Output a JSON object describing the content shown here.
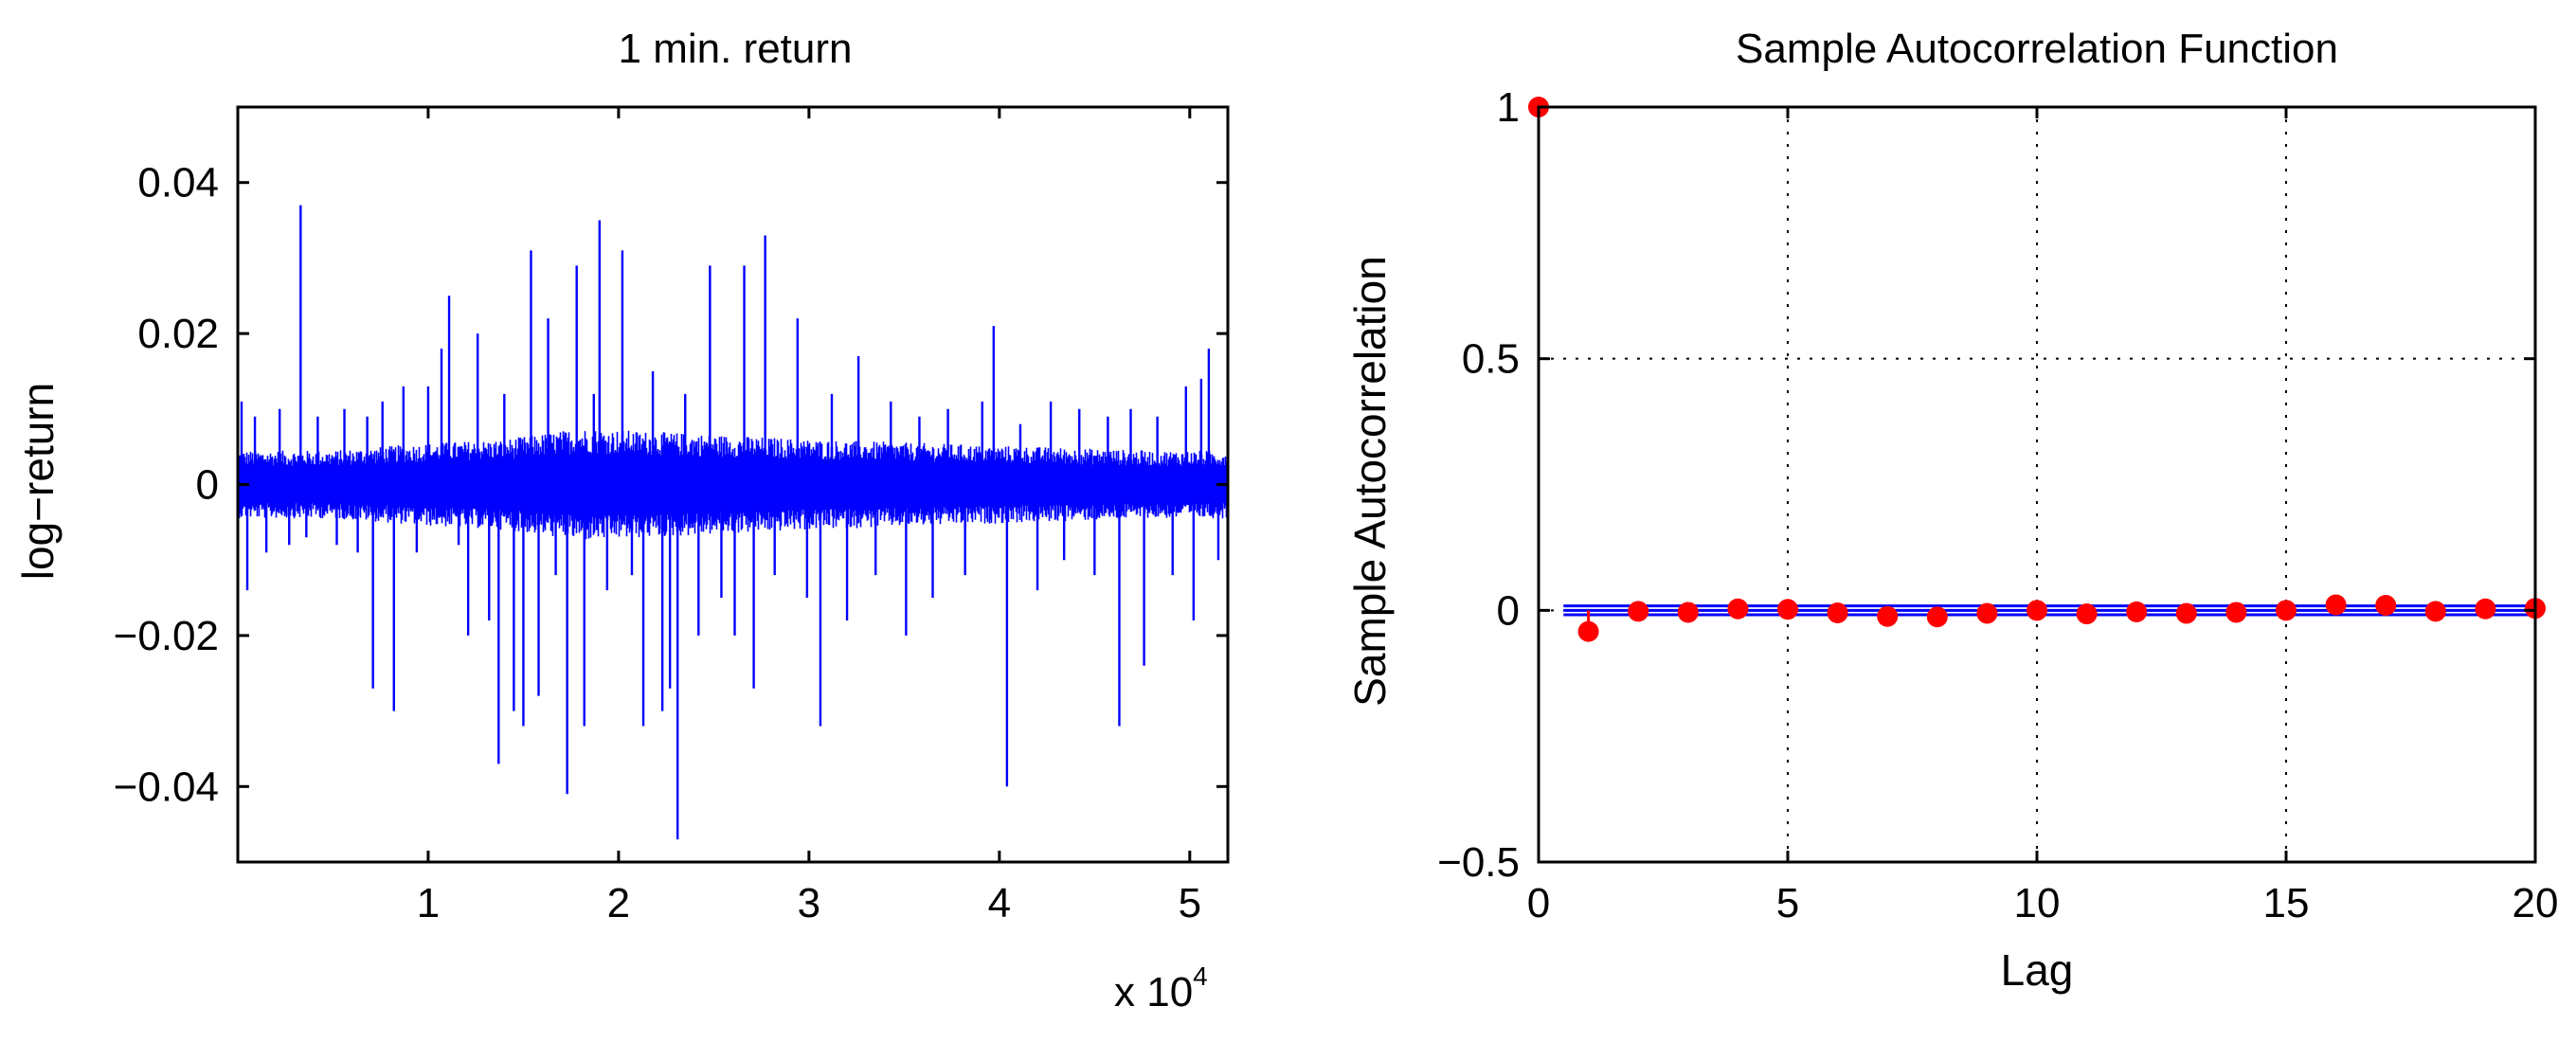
{
  "colors": {
    "series": "#0000ff",
    "acf_marker": "#ff0000",
    "bounds": "#0000ff",
    "axes": "#000000",
    "background": "#ffffff"
  },
  "chart_data": [
    {
      "type": "line",
      "title": "1 min. return",
      "xlabel": "",
      "ylabel": "log−return",
      "xlim": [
        1,
        52000
      ],
      "ylim": [
        -0.05,
        0.05
      ],
      "x_exponent_label": "x 10",
      "x_exponent_power": "4",
      "xticks": [
        {
          "value": 10000,
          "label": "1"
        },
        {
          "value": 20000,
          "label": "2"
        },
        {
          "value": 30000,
          "label": "3"
        },
        {
          "value": 40000,
          "label": "4"
        },
        {
          "value": 50000,
          "label": "5"
        }
      ],
      "yticks": [
        {
          "value": 0.04,
          "label": "0.04"
        },
        {
          "value": 0.02,
          "label": "0.02"
        },
        {
          "value": 0,
          "label": "0"
        },
        {
          "value": -0.02,
          "label": "−0.02"
        },
        {
          "value": -0.04,
          "label": "−0.04"
        }
      ],
      "grid": false,
      "noise_band": [
        {
          "x": 0,
          "half_width": 0.0045
        },
        {
          "x": 5000,
          "half_width": 0.0045
        },
        {
          "x": 10000,
          "half_width": 0.0055
        },
        {
          "x": 14000,
          "half_width": 0.006
        },
        {
          "x": 18000,
          "half_width": 0.0075
        },
        {
          "x": 22000,
          "half_width": 0.007
        },
        {
          "x": 26000,
          "half_width": 0.0065
        },
        {
          "x": 30000,
          "half_width": 0.006
        },
        {
          "x": 36000,
          "half_width": 0.0055
        },
        {
          "x": 42000,
          "half_width": 0.005
        },
        {
          "x": 48000,
          "half_width": 0.0045
        },
        {
          "x": 52000,
          "half_width": 0.0045
        }
      ],
      "spikes": [
        {
          "x": 200,
          "y": 0.011
        },
        {
          "x": 500,
          "y": -0.014
        },
        {
          "x": 900,
          "y": 0.009
        },
        {
          "x": 1500,
          "y": -0.009
        },
        {
          "x": 2200,
          "y": 0.01
        },
        {
          "x": 2700,
          "y": -0.008
        },
        {
          "x": 3300,
          "y": 0.037
        },
        {
          "x": 3600,
          "y": -0.007
        },
        {
          "x": 4200,
          "y": 0.009
        },
        {
          "x": 5200,
          "y": -0.008
        },
        {
          "x": 5600,
          "y": 0.01
        },
        {
          "x": 6300,
          "y": -0.009
        },
        {
          "x": 6800,
          "y": 0.009
        },
        {
          "x": 7100,
          "y": -0.027
        },
        {
          "x": 7600,
          "y": 0.011
        },
        {
          "x": 8200,
          "y": -0.03
        },
        {
          "x": 8700,
          "y": 0.013
        },
        {
          "x": 9400,
          "y": -0.009
        },
        {
          "x": 10000,
          "y": 0.013
        },
        {
          "x": 10700,
          "y": 0.018
        },
        {
          "x": 11100,
          "y": 0.025
        },
        {
          "x": 11600,
          "y": -0.008
        },
        {
          "x": 12100,
          "y": -0.02
        },
        {
          "x": 12600,
          "y": 0.02
        },
        {
          "x": 13200,
          "y": -0.018
        },
        {
          "x": 13700,
          "y": -0.037
        },
        {
          "x": 14000,
          "y": 0.012
        },
        {
          "x": 14500,
          "y": -0.03
        },
        {
          "x": 15000,
          "y": -0.032
        },
        {
          "x": 15400,
          "y": 0.031
        },
        {
          "x": 15800,
          "y": -0.028
        },
        {
          "x": 16300,
          "y": 0.022
        },
        {
          "x": 16700,
          "y": -0.012
        },
        {
          "x": 17300,
          "y": -0.041
        },
        {
          "x": 17800,
          "y": 0.029
        },
        {
          "x": 18200,
          "y": -0.032
        },
        {
          "x": 18700,
          "y": 0.012
        },
        {
          "x": 19000,
          "y": 0.035
        },
        {
          "x": 19400,
          "y": -0.014
        },
        {
          "x": 20200,
          "y": 0.031
        },
        {
          "x": 20700,
          "y": -0.012
        },
        {
          "x": 21300,
          "y": -0.032
        },
        {
          "x": 21800,
          "y": 0.015
        },
        {
          "x": 22300,
          "y": -0.03
        },
        {
          "x": 22700,
          "y": -0.027
        },
        {
          "x": 23100,
          "y": -0.047
        },
        {
          "x": 23500,
          "y": 0.012
        },
        {
          "x": 24200,
          "y": -0.02
        },
        {
          "x": 24800,
          "y": 0.029
        },
        {
          "x": 25400,
          "y": -0.015
        },
        {
          "x": 26100,
          "y": -0.02
        },
        {
          "x": 26600,
          "y": 0.029
        },
        {
          "x": 27100,
          "y": -0.027
        },
        {
          "x": 27700,
          "y": 0.033
        },
        {
          "x": 28200,
          "y": -0.012
        },
        {
          "x": 29400,
          "y": 0.022
        },
        {
          "x": 29900,
          "y": -0.015
        },
        {
          "x": 30600,
          "y": -0.032
        },
        {
          "x": 31200,
          "y": 0.012
        },
        {
          "x": 32000,
          "y": -0.018
        },
        {
          "x": 32600,
          "y": 0.017
        },
        {
          "x": 33500,
          "y": -0.012
        },
        {
          "x": 34300,
          "y": 0.011
        },
        {
          "x": 35100,
          "y": -0.02
        },
        {
          "x": 35800,
          "y": 0.009
        },
        {
          "x": 36500,
          "y": -0.015
        },
        {
          "x": 37300,
          "y": 0.01
        },
        {
          "x": 38200,
          "y": -0.012
        },
        {
          "x": 39100,
          "y": 0.011
        },
        {
          "x": 39700,
          "y": 0.021
        },
        {
          "x": 40400,
          "y": -0.04
        },
        {
          "x": 41100,
          "y": 0.008
        },
        {
          "x": 42000,
          "y": -0.014
        },
        {
          "x": 42700,
          "y": 0.011
        },
        {
          "x": 43400,
          "y": -0.01
        },
        {
          "x": 44200,
          "y": 0.01
        },
        {
          "x": 45000,
          "y": -0.012
        },
        {
          "x": 45700,
          "y": 0.009
        },
        {
          "x": 46300,
          "y": -0.032
        },
        {
          "x": 46900,
          "y": 0.01
        },
        {
          "x": 47600,
          "y": -0.024
        },
        {
          "x": 48300,
          "y": 0.009
        },
        {
          "x": 49100,
          "y": -0.012
        },
        {
          "x": 49800,
          "y": 0.013
        },
        {
          "x": 50200,
          "y": -0.018
        },
        {
          "x": 50600,
          "y": 0.014
        },
        {
          "x": 51000,
          "y": 0.018
        },
        {
          "x": 51500,
          "y": -0.01
        }
      ]
    },
    {
      "type": "scatter",
      "title": "Sample Autocorrelation Function",
      "xlabel": "Lag",
      "ylabel": "Sample Autocorrelation",
      "xlim": [
        0,
        20
      ],
      "ylim": [
        -0.5,
        1
      ],
      "xticks": [
        {
          "value": 0,
          "label": "0"
        },
        {
          "value": 5,
          "label": "5"
        },
        {
          "value": 10,
          "label": "10"
        },
        {
          "value": 15,
          "label": "15"
        },
        {
          "value": 20,
          "label": "20"
        }
      ],
      "yticks": [
        {
          "value": 1,
          "label": "1"
        },
        {
          "value": 0.5,
          "label": "0.5"
        },
        {
          "value": 0,
          "label": "0"
        },
        {
          "value": -0.5,
          "label": "−0.5"
        }
      ],
      "grid": true,
      "confidence_bounds": [
        0.0088,
        -0.0088
      ],
      "lags": [
        0,
        1,
        2,
        3,
        4,
        5,
        6,
        7,
        8,
        9,
        10,
        11,
        12,
        13,
        14,
        15,
        16,
        17,
        18,
        19,
        20
      ],
      "acf": [
        1.0,
        -0.042,
        -0.002,
        -0.004,
        0.003,
        0.002,
        -0.005,
        -0.012,
        -0.013,
        -0.006,
        0.0,
        -0.007,
        -0.003,
        -0.006,
        -0.004,
        0.0,
        0.011,
        0.01,
        -0.002,
        0.003,
        0.004
      ]
    }
  ]
}
